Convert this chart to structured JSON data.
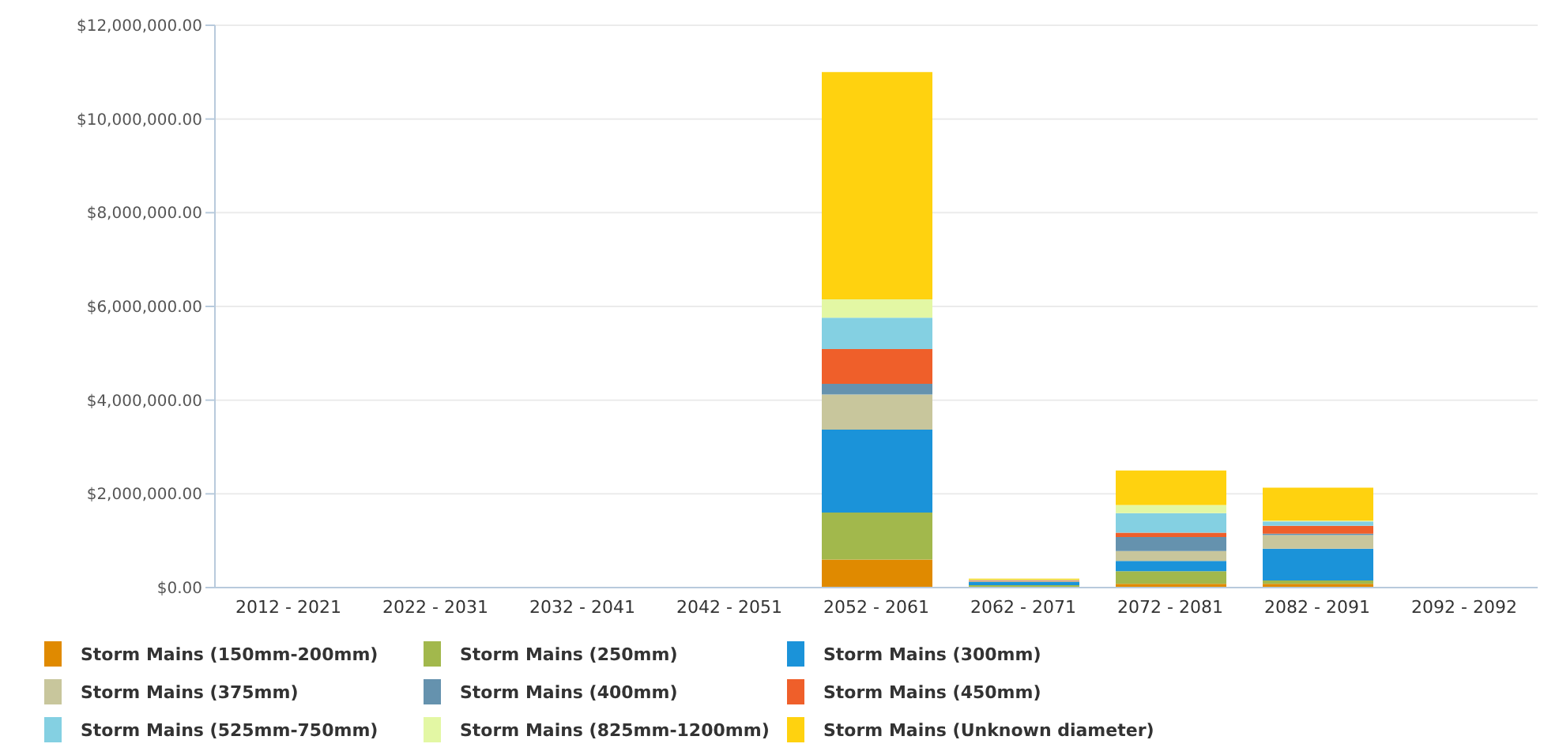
{
  "chart_data": {
    "type": "bar",
    "stacked": true,
    "categories": [
      "2012 - 2021",
      "2022 - 2031",
      "2032 - 2041",
      "2042 - 2051",
      "2052 - 2061",
      "2062 - 2071",
      "2072 - 2081",
      "2082 - 2091",
      "2092 - 2092"
    ],
    "series": [
      {
        "name": "Storm Mains (150mm-200mm)",
        "color": "#e08a00",
        "values": [
          0,
          0,
          0,
          0,
          600000,
          null,
          80000,
          80000,
          0
        ]
      },
      {
        "name": "Storm Mains (250mm)",
        "color": "#a2b84c",
        "values": [
          0,
          0,
          0,
          0,
          1000000,
          50000,
          270000,
          70000,
          0
        ]
      },
      {
        "name": "Storm Mains (300mm)",
        "color": "#1b93d9",
        "values": [
          0,
          0,
          0,
          0,
          1770000,
          70000,
          220000,
          680000,
          0
        ]
      },
      {
        "name": "Storm Mains (375mm)",
        "color": "#c8c69c",
        "values": [
          0,
          0,
          0,
          0,
          750000,
          10000,
          210000,
          290000,
          0
        ]
      },
      {
        "name": "Storm Mains (400mm)",
        "color": "#6592ae",
        "values": [
          0,
          0,
          0,
          0,
          230000,
          10000,
          300000,
          30000,
          0
        ]
      },
      {
        "name": "Storm Mains (450mm)",
        "color": "#ef5f2a",
        "values": [
          0,
          0,
          0,
          0,
          740000,
          10000,
          90000,
          170000,
          0
        ]
      },
      {
        "name": "Storm Mains (525mm-750mm)",
        "color": "#84d0e2",
        "values": [
          0,
          0,
          0,
          0,
          670000,
          10000,
          420000,
          90000,
          0
        ]
      },
      {
        "name": "Storm Mains (825mm-1200mm)",
        "color": "#e3f7a4",
        "values": [
          0,
          0,
          0,
          0,
          390000,
          10000,
          170000,
          20000,
          0
        ]
      },
      {
        "name": "Storm Mains (Unknown diameter)",
        "color": "#ffd20f",
        "values": [
          0,
          0,
          0,
          0,
          4850000,
          20000,
          740000,
          700000,
          0
        ]
      }
    ],
    "ylim": [
      0,
      12000000
    ],
    "yticks": [
      {
        "value": 0,
        "label": "$0.00"
      },
      {
        "value": 2000000,
        "label": "$2,000,000.00"
      },
      {
        "value": 4000000,
        "label": "$4,000,000.00"
      },
      {
        "value": 6000000,
        "label": "$6,000,000.00"
      },
      {
        "value": 8000000,
        "label": "$8,000,000.00"
      },
      {
        "value": 10000000,
        "label": "$10,000,000.00"
      },
      {
        "value": 12000000,
        "label": "$12,000,000.00"
      }
    ],
    "grid": "y",
    "legend": "bottom"
  }
}
